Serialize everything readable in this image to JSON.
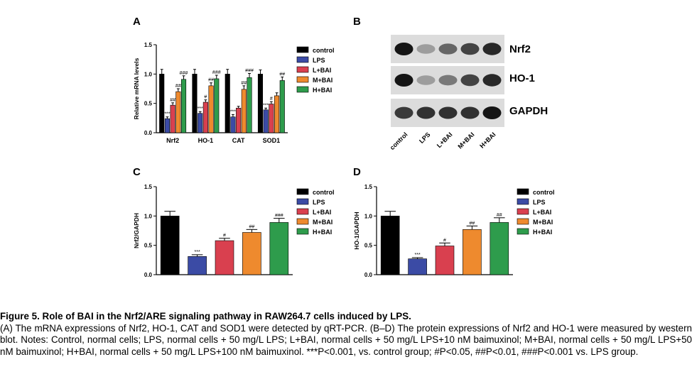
{
  "panels": {
    "A": "A",
    "B": "B",
    "C": "C",
    "D": "D"
  },
  "series_colors": {
    "control": "#000000",
    "LPS": "#3b4ba5",
    "L+BAI": "#d9404f",
    "M+BAI": "#ee8a2e",
    "H+BAI": "#2e9c4c"
  },
  "chart_data": [
    {
      "id": "A",
      "type": "bar",
      "title": "",
      "ylabel": "Relative mRNA levels",
      "ylim": [
        0,
        1.5
      ],
      "yticks": [
        "0.0",
        "0.5",
        "1.0",
        "1.5"
      ],
      "categories": [
        "Nrf2",
        "HO-1",
        "CAT",
        "SOD1"
      ],
      "legend": "right",
      "series": [
        {
          "name": "control",
          "values": [
            1.0,
            1.0,
            1.0,
            1.0
          ],
          "errors": [
            0.08,
            0.08,
            0.08,
            0.07
          ]
        },
        {
          "name": "LPS",
          "values": [
            0.24,
            0.33,
            0.27,
            0.39
          ],
          "errors": [
            0.03,
            0.03,
            0.04,
            0.03
          ]
        },
        {
          "name": "L+BAI",
          "values": [
            0.47,
            0.52,
            0.42,
            0.49
          ],
          "errors": [
            0.04,
            0.04,
            0.03,
            0.04
          ]
        },
        {
          "name": "M+BAI",
          "values": [
            0.7,
            0.8,
            0.74,
            0.63
          ],
          "errors": [
            0.05,
            0.05,
            0.06,
            0.05
          ]
        },
        {
          "name": "H+BAI",
          "values": [
            0.91,
            0.92,
            0.94,
            0.89
          ],
          "errors": [
            0.06,
            0.06,
            0.07,
            0.06
          ]
        }
      ],
      "annotations": [
        [
          "",
          "***",
          "##",
          "##",
          "###"
        ],
        [
          "",
          "***",
          "#",
          "##",
          "###"
        ],
        [
          "",
          "***",
          "",
          "##",
          "###"
        ],
        [
          "",
          "***",
          "#",
          "",
          "##"
        ]
      ]
    },
    {
      "id": "C",
      "type": "bar",
      "title": "",
      "ylabel": "Nrf2/GAPDH",
      "ylim": [
        0,
        1.5
      ],
      "yticks": [
        "0.0",
        "0.5",
        "1.0",
        "1.5"
      ],
      "categories": [
        "control",
        "LPS",
        "L+BAI",
        "M+BAI",
        "H+BAI"
      ],
      "legend": "right",
      "values": [
        1.0,
        0.31,
        0.58,
        0.72,
        0.89
      ],
      "errors": [
        0.08,
        0.03,
        0.04,
        0.05,
        0.07
      ],
      "annotations": [
        "",
        "***",
        "#",
        "##",
        "###"
      ]
    },
    {
      "id": "D",
      "type": "bar",
      "title": "",
      "ylabel": "HO-1/GAPDH",
      "ylim": [
        0,
        1.5
      ],
      "yticks": [
        "0.0",
        "0.5",
        "1.0",
        "1.5"
      ],
      "categories": [
        "control",
        "LPS",
        "L+BAI",
        "M+BAI",
        "H+BAI"
      ],
      "legend": "right",
      "values": [
        1.0,
        0.27,
        0.49,
        0.77,
        0.89
      ],
      "errors": [
        0.08,
        0.02,
        0.05,
        0.06,
        0.08
      ],
      "annotations": [
        "",
        "***",
        "#",
        "##",
        "##"
      ]
    }
  ],
  "blot": {
    "rows": [
      "Nrf2",
      "HO-1",
      "GAPDH"
    ],
    "lanes": [
      "control",
      "LPS",
      "L+BAI",
      "M+BAI",
      "H+BAI"
    ],
    "intensity": [
      [
        1.0,
        0.25,
        0.55,
        0.75,
        0.9
      ],
      [
        1.0,
        0.25,
        0.45,
        0.75,
        0.9
      ],
      [
        0.8,
        0.85,
        0.85,
        0.85,
        1.0
      ]
    ]
  },
  "caption": {
    "title": "Figure 5. Role of BAI in the Nrf2/ARE signaling pathway in RAW264.7 cells induced by LPS.",
    "body": "(A) The mRNA expressions of Nrf2, HO-1, CAT and SOD1 were detected by qRT-PCR. (B–D) The protein expressions of Nrf2 and HO-1 were measured by western blot. Notes: Control, normal cells; LPS, normal cells + 50 mg/L LPS; L+BAI, normal cells + 50 mg/L LPS+10 nM baimuxinol; M+BAI, normal cells + 50 mg/L LPS+50 nM baimuxinol; H+BAI, normal cells + 50 mg/L LPS+100 nM baimuxinol. ***P<0.001, vs. control group; #P<0.05, ##P<0.01, ###P<0.001 vs. LPS group."
  }
}
